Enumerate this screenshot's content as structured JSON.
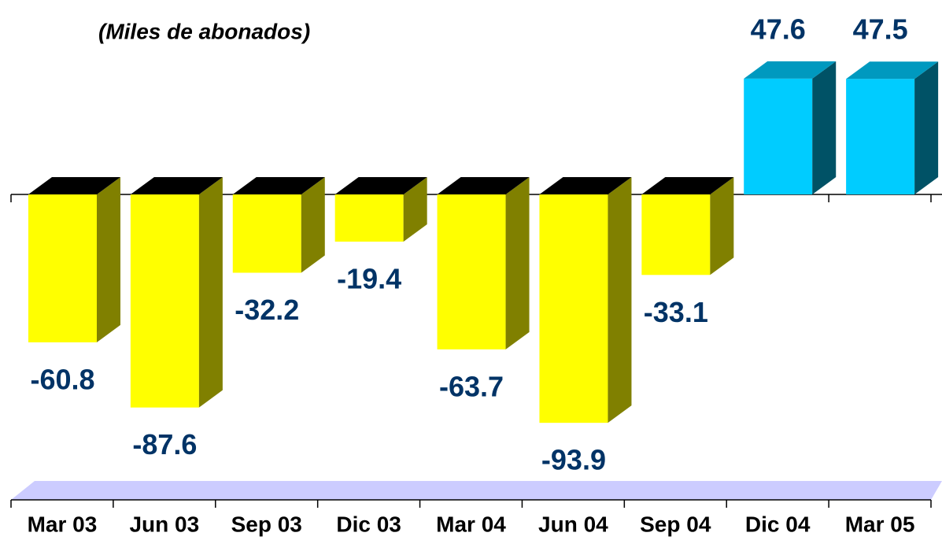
{
  "chart_data": {
    "type": "bar3d",
    "subtitle": "(Miles de abonados)",
    "categories": [
      "Mar 03",
      "Jun 03",
      "Sep 03",
      "Dic 03",
      "Mar 04",
      "Jun 04",
      "Sep 04",
      "Dic 04",
      "Mar 05"
    ],
    "values": [
      -60.8,
      -87.6,
      -32.2,
      -19.4,
      -63.7,
      -93.9,
      -33.1,
      47.6,
      47.5
    ],
    "colors": [
      "#ffff00",
      "#ffff00",
      "#ffff00",
      "#ffff00",
      "#ffff00",
      "#ffff00",
      "#ffff00",
      "#00ccff",
      "#00ccff"
    ],
    "ylim": [
      -100,
      50
    ]
  }
}
